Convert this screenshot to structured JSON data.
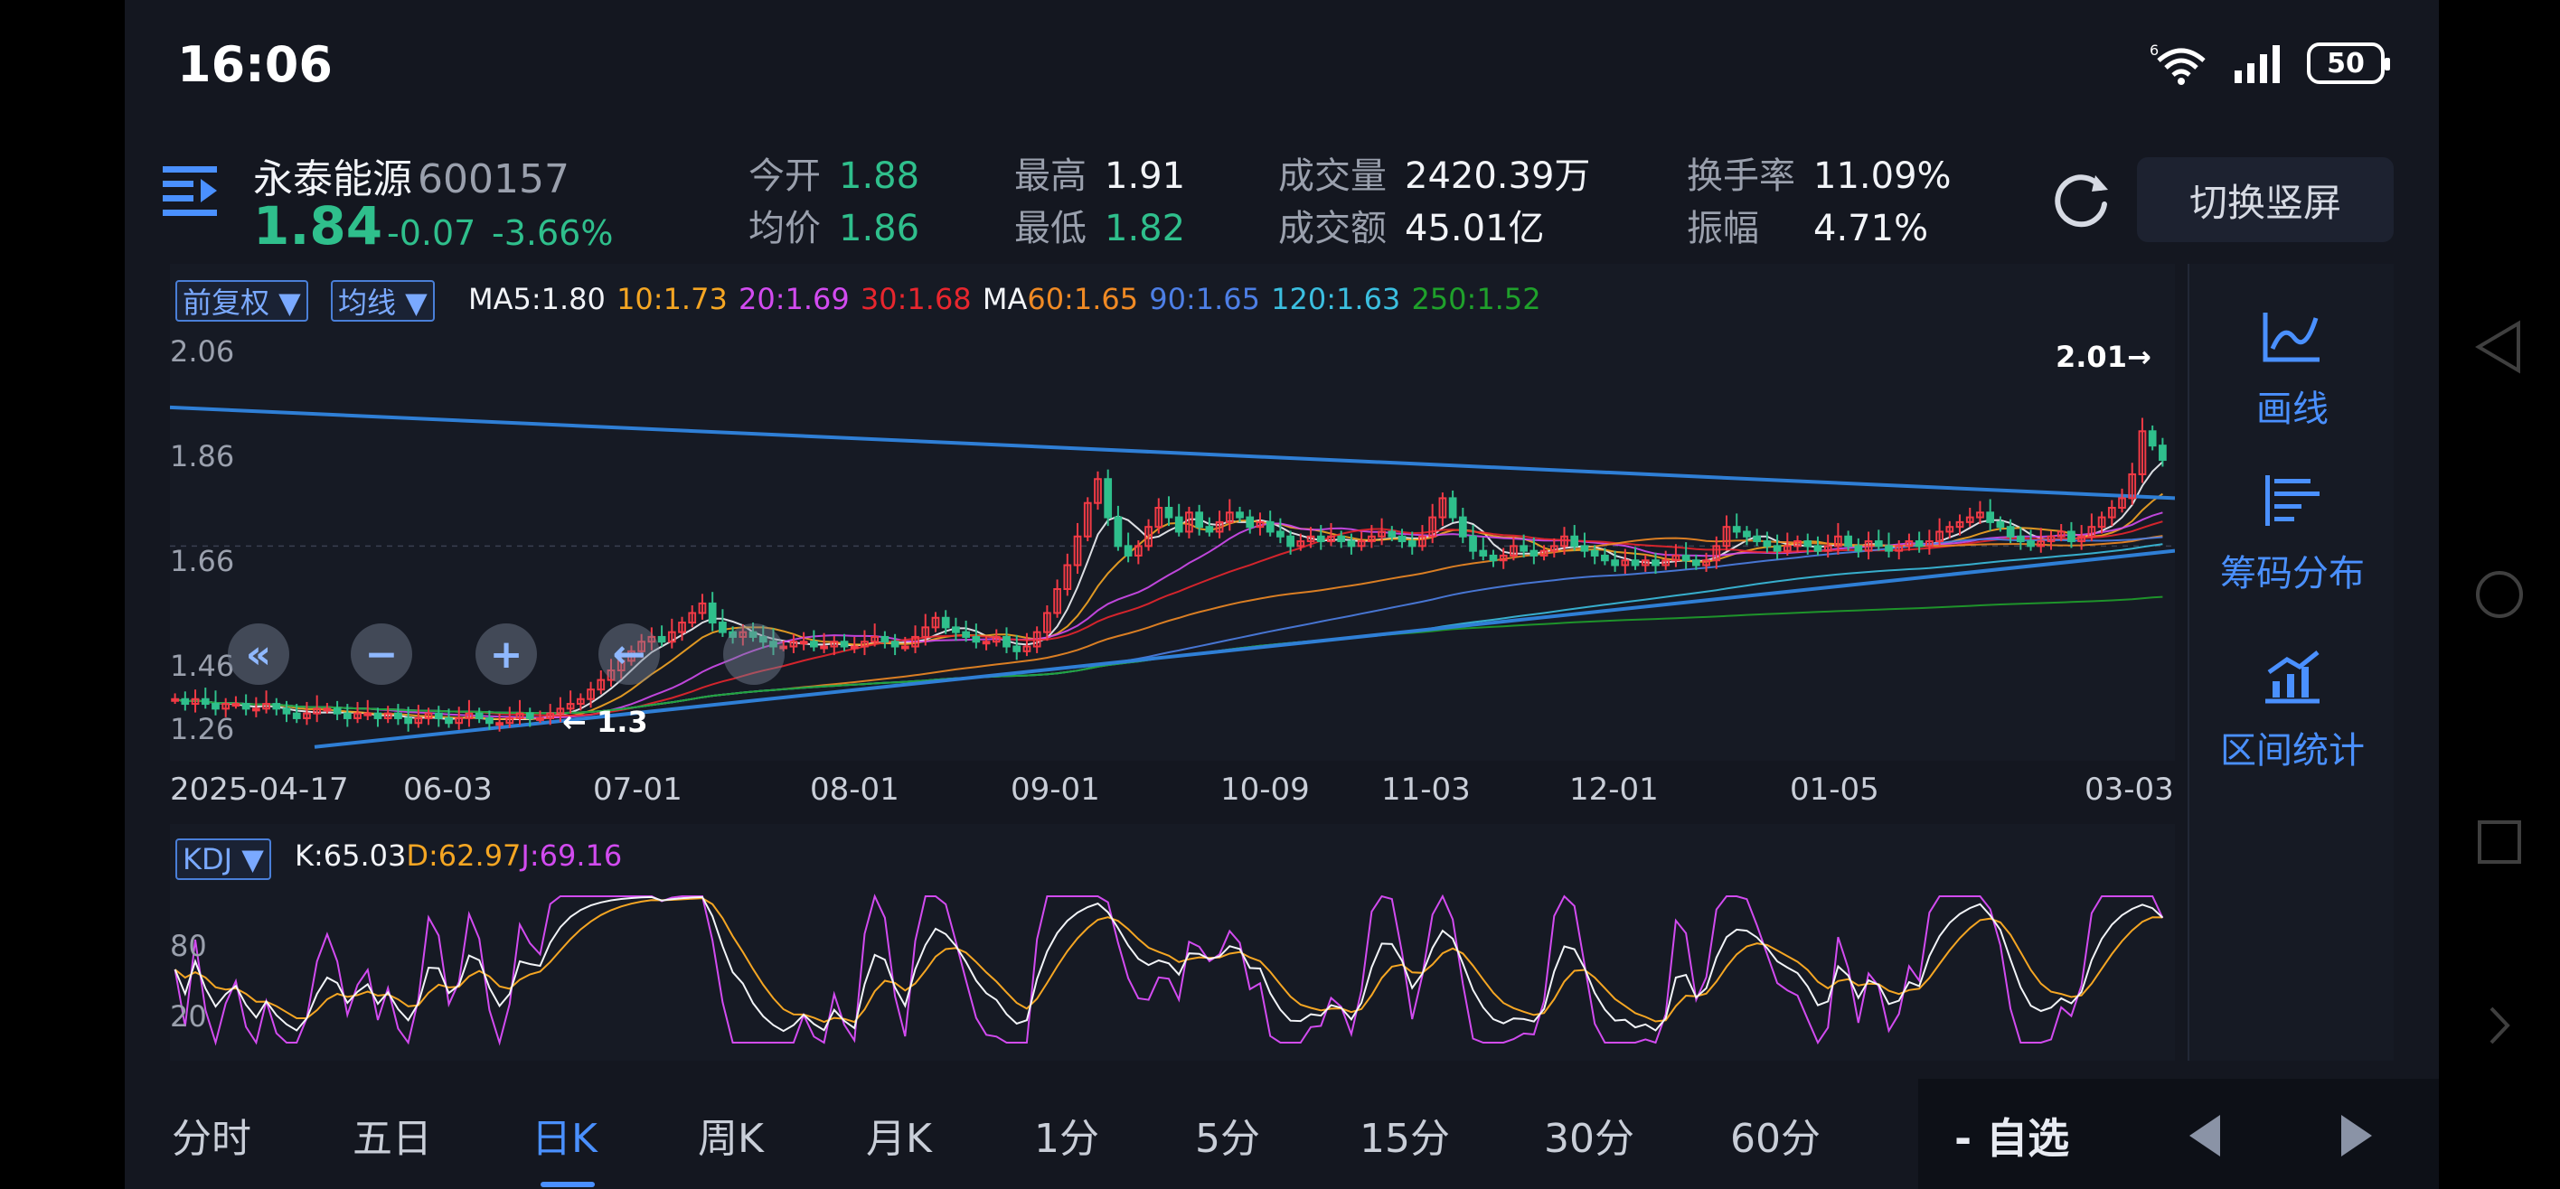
{
  "status": {
    "time": "16:06",
    "network": "6",
    "battery": "50"
  },
  "stock": {
    "name": "永泰能源",
    "code": "600157",
    "price": "1.84",
    "change": "-0.07",
    "change_pct": "-3.66%"
  },
  "metrics": {
    "open_label": "今开",
    "open": "1.88",
    "avg_label": "均价",
    "avg": "1.86",
    "high_label": "最高",
    "high": "1.91",
    "low_label": "最低",
    "low": "1.82",
    "vol_label": "成交量",
    "vol": "2420.39万",
    "amount_label": "成交额",
    "amount": "45.01亿",
    "turnover_label": "换手率",
    "turnover": "11.09%",
    "amplitude_label": "振幅",
    "amplitude": "4.71%"
  },
  "switch_button": "切换竖屏",
  "chips": {
    "adjust": "前复权 ▼",
    "ma_type": "均线 ▼",
    "indicator": "KDJ ▼"
  },
  "ma_values": [
    {
      "label": "MA5:1.80",
      "color": "#f2f4f8"
    },
    {
      "label": "10:1.73",
      "color": "#f5a623"
    },
    {
      "label": "20:1.69",
      "color": "#d24bf0"
    },
    {
      "label": "30:1.68",
      "color": "#e8262e"
    },
    {
      "label": "MA",
      "color": "#f2f4f8"
    },
    {
      "label": "60:1.65",
      "color": "#f08a24"
    },
    {
      "label": "90:1.65",
      "color": "#4d7fe6"
    },
    {
      "label": "120:1.63",
      "color": "#3bbfe0"
    },
    {
      "label": "250:1.52",
      "color": "#1fa12b"
    }
  ],
  "kdj_values": [
    {
      "label": "K:65.03",
      "color": "#f2f4f8"
    },
    {
      "label": "D:62.97",
      "color": "#f5a623"
    },
    {
      "label": "J:69.16",
      "color": "#d24bf0"
    }
  ],
  "side_tools": [
    {
      "label": "画线",
      "icon": "draw-line-icon"
    },
    {
      "label": "筹码分布",
      "icon": "chip-distribution-icon"
    },
    {
      "label": "区间统计",
      "icon": "range-stats-icon"
    }
  ],
  "annotations": {
    "max_label": "2.01→",
    "min_label": "← 1.3"
  },
  "tabs": [
    "分时",
    "五日",
    "日K",
    "周K",
    "月K",
    "1分",
    "5分",
    "15分",
    "30分",
    "60分"
  ],
  "active_tab": "日K",
  "favorite": "- 自选",
  "colors": {
    "up": "#f23a45",
    "down": "#2fbf8c",
    "accent": "#4a90ff",
    "trendline": "#2f7fd6"
  },
  "chart_data": [
    {
      "type": "candlestick",
      "title": "",
      "y_ticks": [
        "2.06",
        "1.86",
        "1.66",
        "1.46",
        "1.26"
      ],
      "ylim": [
        1.23,
        2.08
      ],
      "x_ticks": [
        "2025-04-17",
        "06-03",
        "07-01",
        "08-01",
        "09-01",
        "10-09",
        "11-03",
        "12-01",
        "01-05",
        "03-03"
      ],
      "close_series": [
        1.34,
        1.33,
        1.34,
        1.33,
        1.32,
        1.33,
        1.33,
        1.32,
        1.32,
        1.33,
        1.32,
        1.31,
        1.3,
        1.31,
        1.32,
        1.32,
        1.31,
        1.3,
        1.31,
        1.31,
        1.3,
        1.31,
        1.3,
        1.29,
        1.3,
        1.31,
        1.3,
        1.29,
        1.3,
        1.31,
        1.3,
        1.29,
        1.29,
        1.3,
        1.31,
        1.3,
        1.3,
        1.31,
        1.32,
        1.33,
        1.34,
        1.36,
        1.38,
        1.4,
        1.42,
        1.44,
        1.46,
        1.47,
        1.46,
        1.48,
        1.5,
        1.52,
        1.54,
        1.5,
        1.48,
        1.47,
        1.48,
        1.47,
        1.46,
        1.45,
        1.45,
        1.46,
        1.46,
        1.45,
        1.45,
        1.46,
        1.45,
        1.45,
        1.46,
        1.47,
        1.46,
        1.45,
        1.45,
        1.47,
        1.49,
        1.51,
        1.49,
        1.48,
        1.47,
        1.46,
        1.46,
        1.47,
        1.45,
        1.44,
        1.45,
        1.48,
        1.52,
        1.57,
        1.62,
        1.68,
        1.75,
        1.8,
        1.72,
        1.66,
        1.64,
        1.66,
        1.7,
        1.74,
        1.72,
        1.69,
        1.73,
        1.7,
        1.69,
        1.71,
        1.73,
        1.72,
        1.7,
        1.71,
        1.69,
        1.68,
        1.66,
        1.67,
        1.68,
        1.67,
        1.68,
        1.67,
        1.66,
        1.67,
        1.68,
        1.69,
        1.68,
        1.67,
        1.66,
        1.68,
        1.72,
        1.76,
        1.72,
        1.68,
        1.65,
        1.64,
        1.63,
        1.64,
        1.66,
        1.65,
        1.64,
        1.65,
        1.66,
        1.68,
        1.66,
        1.65,
        1.64,
        1.63,
        1.62,
        1.63,
        1.62,
        1.63,
        1.62,
        1.63,
        1.64,
        1.63,
        1.62,
        1.63,
        1.66,
        1.7,
        1.69,
        1.68,
        1.67,
        1.66,
        1.65,
        1.66,
        1.67,
        1.66,
        1.65,
        1.66,
        1.68,
        1.66,
        1.65,
        1.67,
        1.66,
        1.65,
        1.66,
        1.67,
        1.66,
        1.67,
        1.69,
        1.7,
        1.71,
        1.72,
        1.73,
        1.71,
        1.7,
        1.68,
        1.67,
        1.66,
        1.67,
        1.68,
        1.69,
        1.67,
        1.68,
        1.7,
        1.72,
        1.74,
        1.76,
        1.81,
        1.9,
        1.87,
        1.84
      ],
      "annotations": [
        "2.01→",
        "← 1.3"
      ]
    },
    {
      "type": "line",
      "title": "",
      "series": [
        {
          "name": "K"
        },
        {
          "name": "D"
        },
        {
          "name": "J"
        }
      ],
      "y_ticks": [
        "80",
        "20"
      ],
      "ylim": [
        0,
        100
      ]
    }
  ]
}
